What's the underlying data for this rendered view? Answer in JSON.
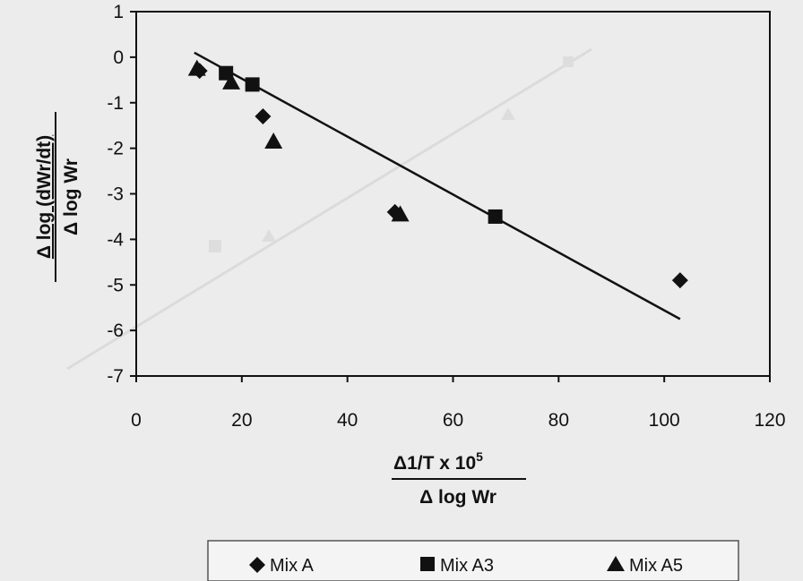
{
  "chart_data": {
    "type": "scatter",
    "xlim": [
      0,
      120
    ],
    "ylim": [
      -7,
      1
    ],
    "x_ticks": [
      0,
      20,
      40,
      60,
      80,
      100,
      120
    ],
    "y_ticks": [
      1,
      0,
      -1,
      -2,
      -3,
      -4,
      -5,
      -6,
      -7
    ],
    "xlabel": {
      "numerator": "Δ1/T x 10",
      "superscript": "5",
      "denominator": "Δ log Wr"
    },
    "ylabel": {
      "numerator": "Δ log (dWr/dt)",
      "denominator": "Δ log Wr"
    },
    "grid": false,
    "legend_position": "bottom",
    "series": [
      {
        "name": "Mix A",
        "marker": "diamond",
        "color": "#111111",
        "points": [
          [
            12,
            -0.3
          ],
          [
            24,
            -1.3
          ],
          [
            49,
            -3.4
          ],
          [
            103,
            -4.9
          ]
        ]
      },
      {
        "name": "Mix A3",
        "marker": "square",
        "color": "#111111",
        "points": [
          [
            17,
            -0.35
          ],
          [
            22,
            -0.6
          ],
          [
            68,
            -3.5
          ]
        ]
      },
      {
        "name": "Mix A5",
        "marker": "triangle",
        "color": "#111111",
        "points": [
          [
            11.5,
            -0.25
          ],
          [
            18,
            -0.55
          ],
          [
            26,
            -1.85
          ],
          [
            50,
            -3.45
          ]
        ]
      }
    ],
    "trendline": {
      "x": [
        11,
        103
      ],
      "y": [
        0.1,
        -5.75
      ],
      "color": "#111111"
    }
  }
}
